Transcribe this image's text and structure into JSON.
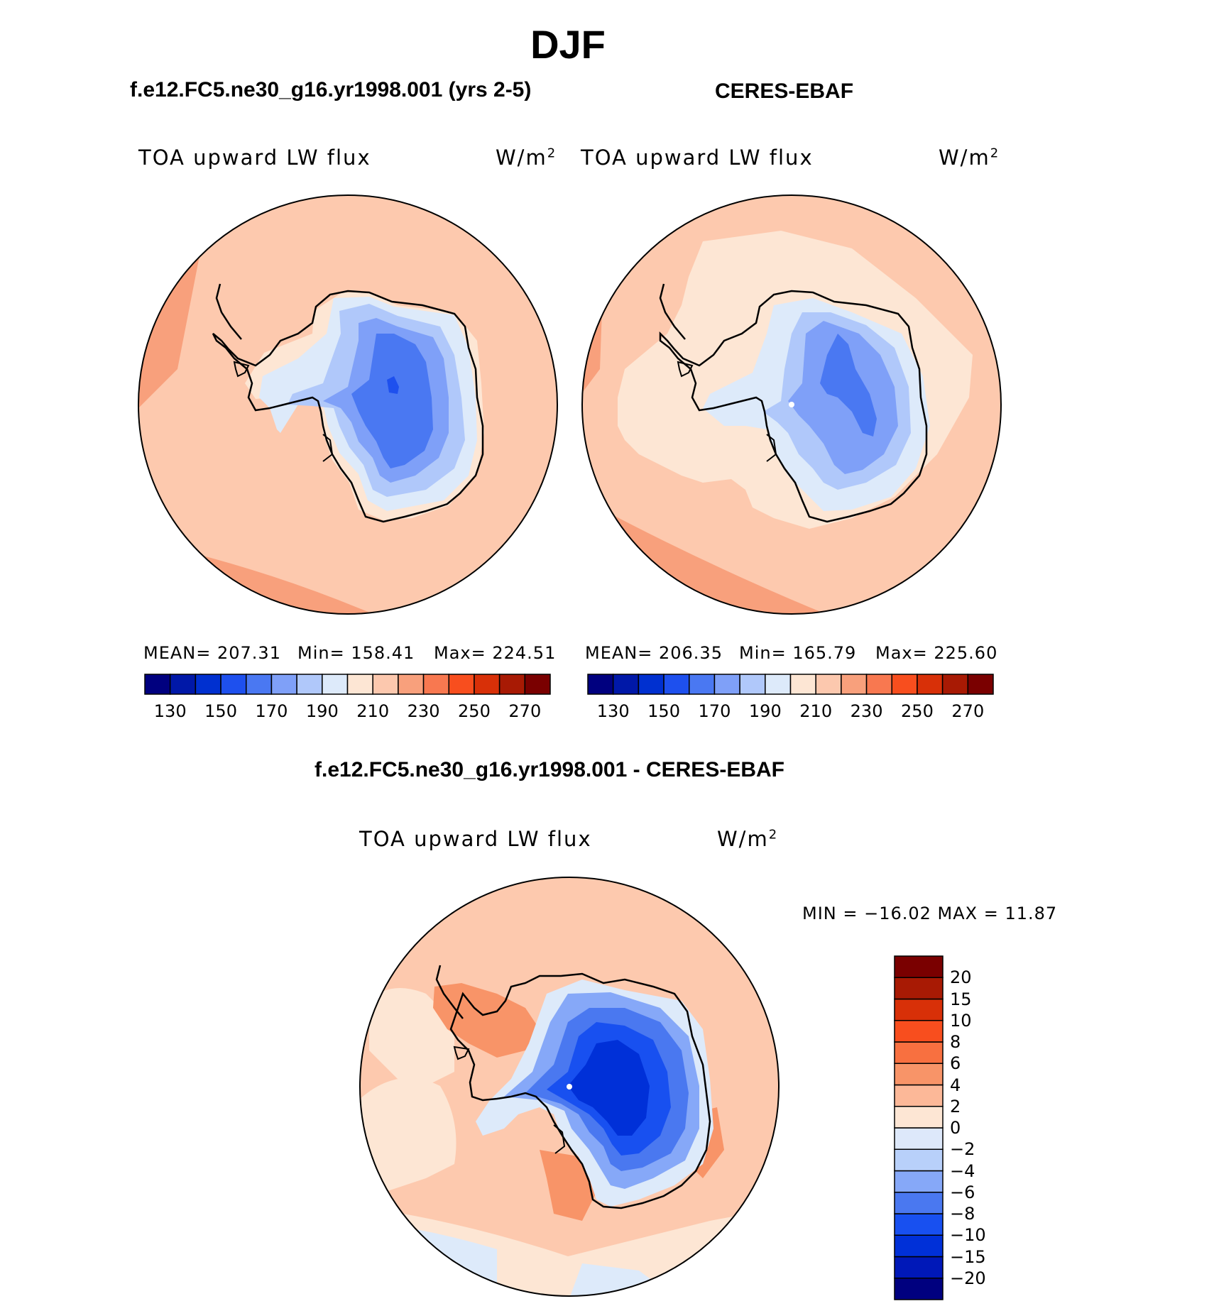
{
  "page": {
    "season": "DJF",
    "left_case": "f.e12.FC5.ne30_g16.yr1998.001 (yrs 2-5)",
    "right_case": "CERES-EBAF",
    "diff_case": "f.e12.FC5.ne30_g16.yr1998.001 - CERES-EBAF"
  },
  "panels": [
    {
      "id": "model",
      "variable": "TOA upward LW flux",
      "units_base": "W/m",
      "units_exp": "2",
      "stats": {
        "mean": "MEAN= 207.31",
        "min": "Min= 158.41",
        "max": "Max= 224.51"
      }
    },
    {
      "id": "obs",
      "variable": "TOA upward LW flux",
      "units_base": "W/m",
      "units_exp": "2",
      "stats": {
        "mean": "MEAN= 206.35",
        "min": "Min= 165.79",
        "max": "Max= 225.60"
      }
    },
    {
      "id": "diff",
      "variable": "TOA upward LW flux",
      "units_base": "W/m",
      "units_exp": "2",
      "stats": {
        "minmax": "MIN = −16.02 MAX =  11.87"
      }
    }
  ],
  "abs_colorbar": {
    "colors": [
      "#00007f",
      "#0018a8",
      "#0030d0",
      "#1e50ee",
      "#4a78f2",
      "#7fa0f8",
      "#b0c8fa",
      "#ddeafa",
      "#fde6d4",
      "#fcc8ae",
      "#f8a07c",
      "#f87850",
      "#f84e1e",
      "#d83008",
      "#a81a04",
      "#7a0000"
    ],
    "tick_labels": [
      "130",
      "150",
      "170",
      "190",
      "210",
      "230",
      "250",
      "270"
    ]
  },
  "diff_colorbar": {
    "colors": [
      "#00007f",
      "#0018b8",
      "#0030d8",
      "#1850f0",
      "#4a78f0",
      "#86a8f8",
      "#b8d0fa",
      "#dde8fa",
      "#fde6d4",
      "#fcb898",
      "#f89468",
      "#f87040",
      "#f84e1e",
      "#d83008",
      "#a81a04",
      "#7a0000"
    ],
    "tick_labels": [
      "−20",
      "−15",
      "−10",
      "−8",
      "−6",
      "−4",
      "−2",
      "0",
      "2",
      "4",
      "6",
      "8",
      "10",
      "15",
      "20"
    ]
  },
  "map_colors": {
    "ocean_base": "#fdc9ae",
    "ocean_warm": "#f8a07c",
    "near_coast": "#fde6d4",
    "ice_l1": "#ddeafa",
    "ice_l2": "#b0c8fa",
    "ice_l3": "#7fa0f8",
    "ice_l4": "#4a78f2",
    "ice_l5": "#1e50ee",
    "diff_deep": "#1040e0",
    "diff_mid": "#4a78f0"
  }
}
